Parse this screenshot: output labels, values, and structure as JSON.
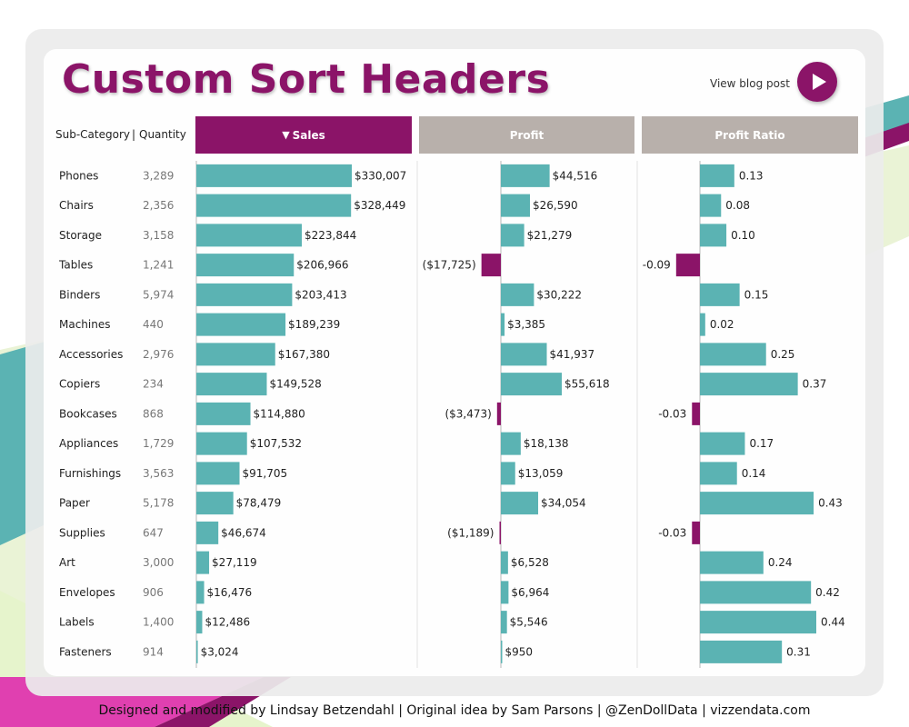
{
  "title": "Custom Sort Headers",
  "blog_link": "View blog post",
  "header": {
    "subcategory_label": "Sub-Category",
    "separator": "|",
    "quantity_label": "Quantity",
    "sort_arrow": "▼"
  },
  "footer": "Designed and modified by Lindsay Betzendahl  |  Original idea by Sam Parsons  |  @ZenDollData  |  vizzendata.com",
  "colors": {
    "accent": "#8b1468",
    "positive": "#5bb3b3",
    "negative": "#8b1468",
    "header_inactive": "#b8b0ab"
  },
  "chart_data": {
    "type": "bar",
    "sorted_by": "Sales",
    "sort_direction": "descending",
    "columns": [
      "Sales",
      "Profit",
      "Profit Ratio"
    ],
    "rows": [
      {
        "category": "Phones",
        "quantity": "3,289",
        "sales": 330007,
        "sales_label": "$330,007",
        "profit": 44516,
        "profit_label": "$44,516",
        "ratio": 0.13,
        "ratio_label": "0.13"
      },
      {
        "category": "Chairs",
        "quantity": "2,356",
        "sales": 328449,
        "sales_label": "$328,449",
        "profit": 26590,
        "profit_label": "$26,590",
        "ratio": 0.08,
        "ratio_label": "0.08"
      },
      {
        "category": "Storage",
        "quantity": "3,158",
        "sales": 223844,
        "sales_label": "$223,844",
        "profit": 21279,
        "profit_label": "$21,279",
        "ratio": 0.1,
        "ratio_label": "0.10"
      },
      {
        "category": "Tables",
        "quantity": "1,241",
        "sales": 206966,
        "sales_label": "$206,966",
        "profit": -17725,
        "profit_label": "($17,725)",
        "ratio": -0.09,
        "ratio_label": "-0.09"
      },
      {
        "category": "Binders",
        "quantity": "5,974",
        "sales": 203413,
        "sales_label": "$203,413",
        "profit": 30222,
        "profit_label": "$30,222",
        "ratio": 0.15,
        "ratio_label": "0.15"
      },
      {
        "category": "Machines",
        "quantity": "440",
        "sales": 189239,
        "sales_label": "$189,239",
        "profit": 3385,
        "profit_label": "$3,385",
        "ratio": 0.02,
        "ratio_label": "0.02"
      },
      {
        "category": "Accessories",
        "quantity": "2,976",
        "sales": 167380,
        "sales_label": "$167,380",
        "profit": 41937,
        "profit_label": "$41,937",
        "ratio": 0.25,
        "ratio_label": "0.25"
      },
      {
        "category": "Copiers",
        "quantity": "234",
        "sales": 149528,
        "sales_label": "$149,528",
        "profit": 55618,
        "profit_label": "$55,618",
        "ratio": 0.37,
        "ratio_label": "0.37"
      },
      {
        "category": "Bookcases",
        "quantity": "868",
        "sales": 114880,
        "sales_label": "$114,880",
        "profit": -3473,
        "profit_label": "($3,473)",
        "ratio": -0.03,
        "ratio_label": "-0.03"
      },
      {
        "category": "Appliances",
        "quantity": "1,729",
        "sales": 107532,
        "sales_label": "$107,532",
        "profit": 18138,
        "profit_label": "$18,138",
        "ratio": 0.17,
        "ratio_label": "0.17"
      },
      {
        "category": "Furnishings",
        "quantity": "3,563",
        "sales": 91705,
        "sales_label": "$91,705",
        "profit": 13059,
        "profit_label": "$13,059",
        "ratio": 0.14,
        "ratio_label": "0.14"
      },
      {
        "category": "Paper",
        "quantity": "5,178",
        "sales": 78479,
        "sales_label": "$78,479",
        "profit": 34054,
        "profit_label": "$34,054",
        "ratio": 0.43,
        "ratio_label": "0.43"
      },
      {
        "category": "Supplies",
        "quantity": "647",
        "sales": 46674,
        "sales_label": "$46,674",
        "profit": -1189,
        "profit_label": "($1,189)",
        "ratio": -0.03,
        "ratio_label": "-0.03"
      },
      {
        "category": "Art",
        "quantity": "3,000",
        "sales": 27119,
        "sales_label": "$27,119",
        "profit": 6528,
        "profit_label": "$6,528",
        "ratio": 0.24,
        "ratio_label": "0.24"
      },
      {
        "category": "Envelopes",
        "quantity": "906",
        "sales": 16476,
        "sales_label": "$16,476",
        "profit": 6964,
        "profit_label": "$6,964",
        "ratio": 0.42,
        "ratio_label": "0.42"
      },
      {
        "category": "Labels",
        "quantity": "1,400",
        "sales": 12486,
        "sales_label": "$12,486",
        "profit": 5546,
        "profit_label": "$5,546",
        "ratio": 0.44,
        "ratio_label": "0.44"
      },
      {
        "category": "Fasteners",
        "quantity": "914",
        "sales": 3024,
        "sales_label": "$3,024",
        "profit": 950,
        "profit_label": "$950",
        "ratio": 0.31,
        "ratio_label": "0.31"
      }
    ]
  }
}
